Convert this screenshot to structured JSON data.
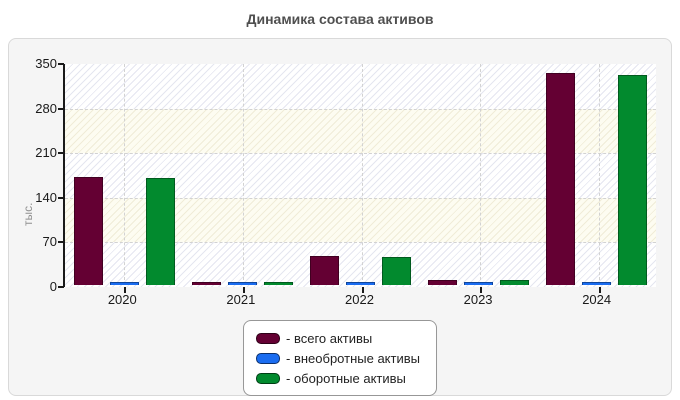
{
  "title": "Динамика состава активов",
  "chart_data": {
    "type": "bar",
    "title": "Динамика состава активов",
    "categories": [
      "2020",
      "2021",
      "2022",
      "2023",
      "2024"
    ],
    "series": [
      {
        "name": "всего активы",
        "color": "#640033",
        "values": [
          170,
          4,
          45,
          8,
          332
        ]
      },
      {
        "name": "внеобротные активы",
        "color": "#1a6cf0",
        "values": [
          2,
          2,
          2,
          2,
          2
        ]
      },
      {
        "name": "оборотные активы",
        "color": "#028a2e",
        "values": [
          168,
          4,
          44,
          8,
          330
        ]
      }
    ],
    "xlabel": "",
    "ylabel": "тыс.",
    "ylim": [
      0,
      350
    ],
    "yticks": [
      0,
      70,
      140,
      210,
      280,
      350
    ],
    "grid": true,
    "legend_position": "bottom-center",
    "legend_prefix": "- "
  },
  "style_colors": {
    "panel_background": "#f5f5f5",
    "band_ivory": "#fdfcf1",
    "band_white": "#ffffff",
    "axis": "#1a1a1a",
    "title_text": "#4f4f4f"
  }
}
